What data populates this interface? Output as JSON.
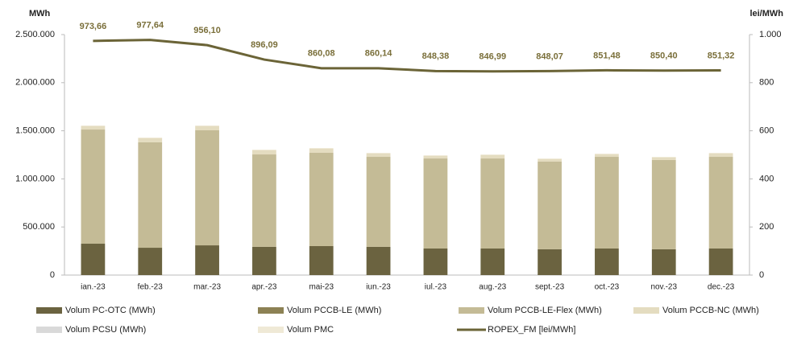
{
  "chart_data": {
    "type": "bar",
    "stacked": true,
    "y_axis_label": "MWh",
    "y2_axis_label": "lei/MWh",
    "categories": [
      "ian.-23",
      "feb.-23",
      "mar.-23",
      "apr.-23",
      "mai-23",
      "iun.-23",
      "iul.-23",
      "aug.-23",
      "sept.-23",
      "oct.-23",
      "nov.-23",
      "dec.-23"
    ],
    "ylim": [
      0,
      2500000
    ],
    "yticks": [
      0,
      {
        "value": 500000,
        "label": "500.000"
      },
      {
        "value": 1000000,
        "label": "1.000.000"
      },
      {
        "value": 1500000,
        "label": "1.500.000"
      },
      {
        "value": 2000000,
        "label": "2.000.000"
      },
      {
        "value": 2500000,
        "label": "2.500.000"
      }
    ],
    "y2lim": [
      0,
      1000
    ],
    "y2ticks": [
      0,
      200,
      400,
      600,
      800,
      {
        "value": 1000,
        "label": "1.000"
      }
    ],
    "series": [
      {
        "name": "Volum PC-OTC (MWh)",
        "color": "#6b6340",
        "values": [
          326000,
          284000,
          309000,
          293000,
          301000,
          293000,
          276000,
          276000,
          268000,
          276000,
          268000,
          276000
        ]
      },
      {
        "name": "Volum PCCB-LE (MWh)",
        "color": "#8c8154",
        "values": [
          0,
          0,
          0,
          0,
          0,
          0,
          0,
          0,
          0,
          0,
          0,
          0
        ]
      },
      {
        "name": "Volum PCCB-LE-Flex (MWh)",
        "color": "#c4bb96",
        "values": [
          1187000,
          1096000,
          1196000,
          961000,
          970000,
          936000,
          936000,
          936000,
          911000,
          953000,
          928000,
          953000
        ]
      },
      {
        "name": "Volum PCCB-NC (MWh)",
        "color": "#e4dcc0",
        "values": [
          34000,
          42000,
          42000,
          42000,
          42000,
          34000,
          26000,
          34000,
          25000,
          26000,
          25000,
          34000
        ]
      },
      {
        "name": "Volum PCSU (MWh)",
        "color": "#d9d9d9",
        "values": [
          0,
          0,
          0,
          0,
          0,
          0,
          0,
          0,
          0,
          0,
          0,
          0
        ]
      },
      {
        "name": "Volum PMC",
        "color": "#efe9d6",
        "values": [
          8000,
          8000,
          8000,
          8000,
          8000,
          8000,
          8000,
          8000,
          8000,
          8000,
          8000,
          8000
        ]
      },
      {
        "name": "ROPEX_FM [lei/MWh]",
        "color": "#6b6437",
        "type": "line",
        "axis": "y2",
        "values": [
          973.66,
          977.64,
          956.1,
          896.09,
          860.08,
          860.14,
          848.38,
          846.99,
          848.07,
          851.48,
          850.4,
          851.32
        ],
        "value_labels": [
          "973,66",
          "977,64",
          "956,10",
          "896,09",
          "860,08",
          "860,14",
          "848,38",
          "846,99",
          "848,07",
          "851,48",
          "850,40",
          "851,32"
        ]
      }
    ]
  }
}
